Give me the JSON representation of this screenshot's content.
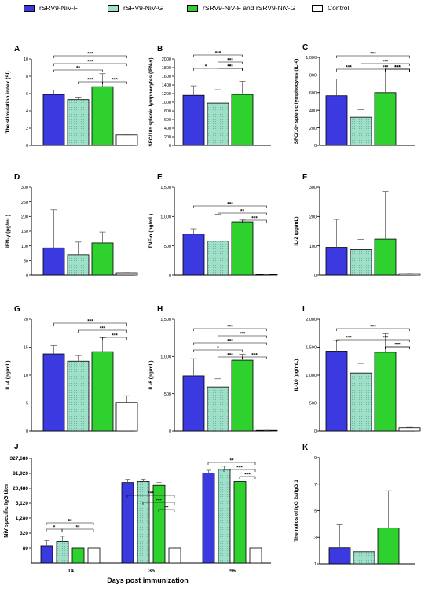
{
  "colors": {
    "F": "#3a3ae0",
    "G": "#9fe0c9",
    "FG": "#2ed12e",
    "Control": "#ffffff",
    "stroke": "#000000"
  },
  "legend": [
    {
      "label": "rSRV9-NiV-F",
      "color": "#3a3ae0"
    },
    {
      "label": "rSRV9-NiV-G",
      "color": "#9fe0c9",
      "pattern": "dots"
    },
    {
      "label": "rSRV9-NiV-F and rSRV9-NiV-G",
      "color": "#2ed12e"
    },
    {
      "label": "Control",
      "color": "#ffffff"
    }
  ],
  "chart_data": [
    {
      "panel": "A",
      "type": "bar",
      "ylabel": "The stimulation index (SI)",
      "ylim": [
        0,
        10
      ],
      "yticks": [
        "0",
        "2",
        "4",
        "6",
        "8",
        "10"
      ],
      "values": [
        5.9,
        5.3,
        6.8,
        1.2
      ],
      "errors": [
        0.5,
        0.3,
        1.5,
        0.1
      ],
      "sig": [
        "***",
        "***",
        "**",
        "***",
        "***"
      ]
    },
    {
      "panel": "B",
      "type": "bar",
      "ylabel": "SFC/10⁶ splenic lymphocytes (IFN-γ)",
      "ylim": [
        0,
        2000
      ],
      "yticks": [
        "0",
        "200",
        "400",
        "600",
        "800",
        "1000",
        "1200",
        "1400",
        "1600",
        "1800",
        "2000"
      ],
      "values": [
        1160,
        980,
        1180
      ],
      "errors": [
        220,
        310,
        300
      ],
      "sig": [
        "***",
        "***",
        "*",
        "*",
        "***"
      ]
    },
    {
      "panel": "C",
      "type": "bar",
      "ylabel": "SFC/10⁶ splenic lymphocytes (IL-4)",
      "ylim": [
        0,
        1000
      ],
      "yticks": [
        "0",
        "200",
        "400",
        "600",
        "800",
        "1,000"
      ],
      "values": [
        565,
        320,
        600
      ],
      "errors": [
        190,
        85,
        280
      ],
      "sig": [
        "***",
        "***",
        "***",
        "***",
        "***",
        "***"
      ]
    },
    {
      "panel": "D",
      "type": "bar",
      "ylabel": "IFN-γ (pg/mL)",
      "ylim": [
        0,
        300
      ],
      "yticks": [
        "0",
        "50",
        "100",
        "150",
        "200",
        "250",
        "300"
      ],
      "values": [
        93,
        70,
        110,
        8
      ],
      "errors": [
        130,
        43,
        37,
        1
      ],
      "sig": []
    },
    {
      "panel": "E",
      "type": "bar",
      "ylabel": "TNF-α (pg/mL)",
      "ylim": [
        0,
        1500
      ],
      "yticks": [
        "0",
        "500",
        "1,000",
        "1,500"
      ],
      "values": [
        700,
        580,
        910,
        8
      ],
      "errors": [
        90,
        460,
        30,
        2
      ],
      "sig": [
        "***",
        "**",
        "***"
      ]
    },
    {
      "panel": "F",
      "type": "bar",
      "ylabel": "IL-2 (pg/mL)",
      "ylim": [
        0,
        300
      ],
      "yticks": [
        "0",
        "100",
        "200",
        "300"
      ],
      "values": [
        95,
        87,
        123,
        5
      ],
      "errors": [
        95,
        35,
        162,
        1
      ],
      "sig": []
    },
    {
      "panel": "G",
      "type": "bar",
      "ylabel": "IL-4 (pg/mL)",
      "ylim": [
        0,
        20
      ],
      "yticks": [
        "0",
        "5",
        "10",
        "15",
        "20"
      ],
      "values": [
        13.8,
        12.5,
        14.2,
        5.1
      ],
      "errors": [
        1.5,
        1.0,
        2.5,
        1.2
      ],
      "sig": [
        "***",
        "***",
        "***"
      ]
    },
    {
      "panel": "H",
      "type": "bar",
      "ylabel": "IL-6 (pg/mL)",
      "ylim": [
        0,
        1500
      ],
      "yticks": [
        "0",
        "500",
        "1,000",
        "1,500"
      ],
      "values": [
        740,
        590,
        950,
        8
      ],
      "errors": [
        230,
        110,
        80,
        2
      ],
      "sig": [
        "***",
        "***",
        "***",
        "*",
        "***",
        "***"
      ]
    },
    {
      "panel": "I",
      "type": "bar",
      "ylabel": "IL-10 (pg/mL)",
      "ylim": [
        0,
        2000
      ],
      "yticks": [
        "0",
        "500",
        "1,000",
        "1,500",
        "2,000"
      ],
      "values": [
        1430,
        1040,
        1410,
        60
      ],
      "errors": [
        190,
        170,
        330,
        8
      ],
      "sig": [
        "***",
        "***",
        "***",
        "**",
        "***"
      ]
    },
    {
      "panel": "J",
      "type": "bar",
      "ylabel": "NiV specific IgG titer",
      "xlabel": "Days post immunization",
      "yscale": "log2",
      "ylim": [
        20,
        327680
      ],
      "yticks": [
        {
          "v": 80,
          "label": "80"
        },
        {
          "v": 320,
          "label": "320"
        },
        {
          "v": 1280,
          "label": "1,280"
        },
        {
          "v": 5120,
          "label": "5,120"
        },
        {
          "v": 20480,
          "label": "20,480"
        },
        {
          "v": 81920,
          "label": "81,920"
        },
        {
          "v": 327680,
          "label": "327,680"
        }
      ],
      "categories": [
        "14",
        "35",
        "56"
      ],
      "series": [
        {
          "values": [
            100,
            35000,
            85000
          ],
          "errors": [
            60,
            12000,
            25000
          ]
        },
        {
          "values": [
            150,
            38000,
            120000
          ],
          "errors": [
            90,
            10000,
            40000
          ]
        },
        {
          "values": [
            80,
            27000,
            38000
          ],
          "errors": [
            0,
            8000,
            0
          ]
        },
        {
          "values": [
            80,
            80,
            80
          ],
          "errors": [
            0,
            0,
            0
          ]
        }
      ],
      "sig": [
        "**",
        "**",
        "*",
        "***",
        "***",
        "**",
        "**",
        "***",
        "***"
      ]
    },
    {
      "panel": "K",
      "type": "bar",
      "ylabel": "The ratios of IgG 2a/IgG 1",
      "ylim": [
        1,
        9
      ],
      "yticks": [
        "1",
        "3",
        "5",
        "7",
        "9"
      ],
      "values": [
        2.2,
        1.9,
        3.7
      ],
      "errors": [
        1.8,
        1.5,
        2.8
      ],
      "sig": []
    }
  ]
}
